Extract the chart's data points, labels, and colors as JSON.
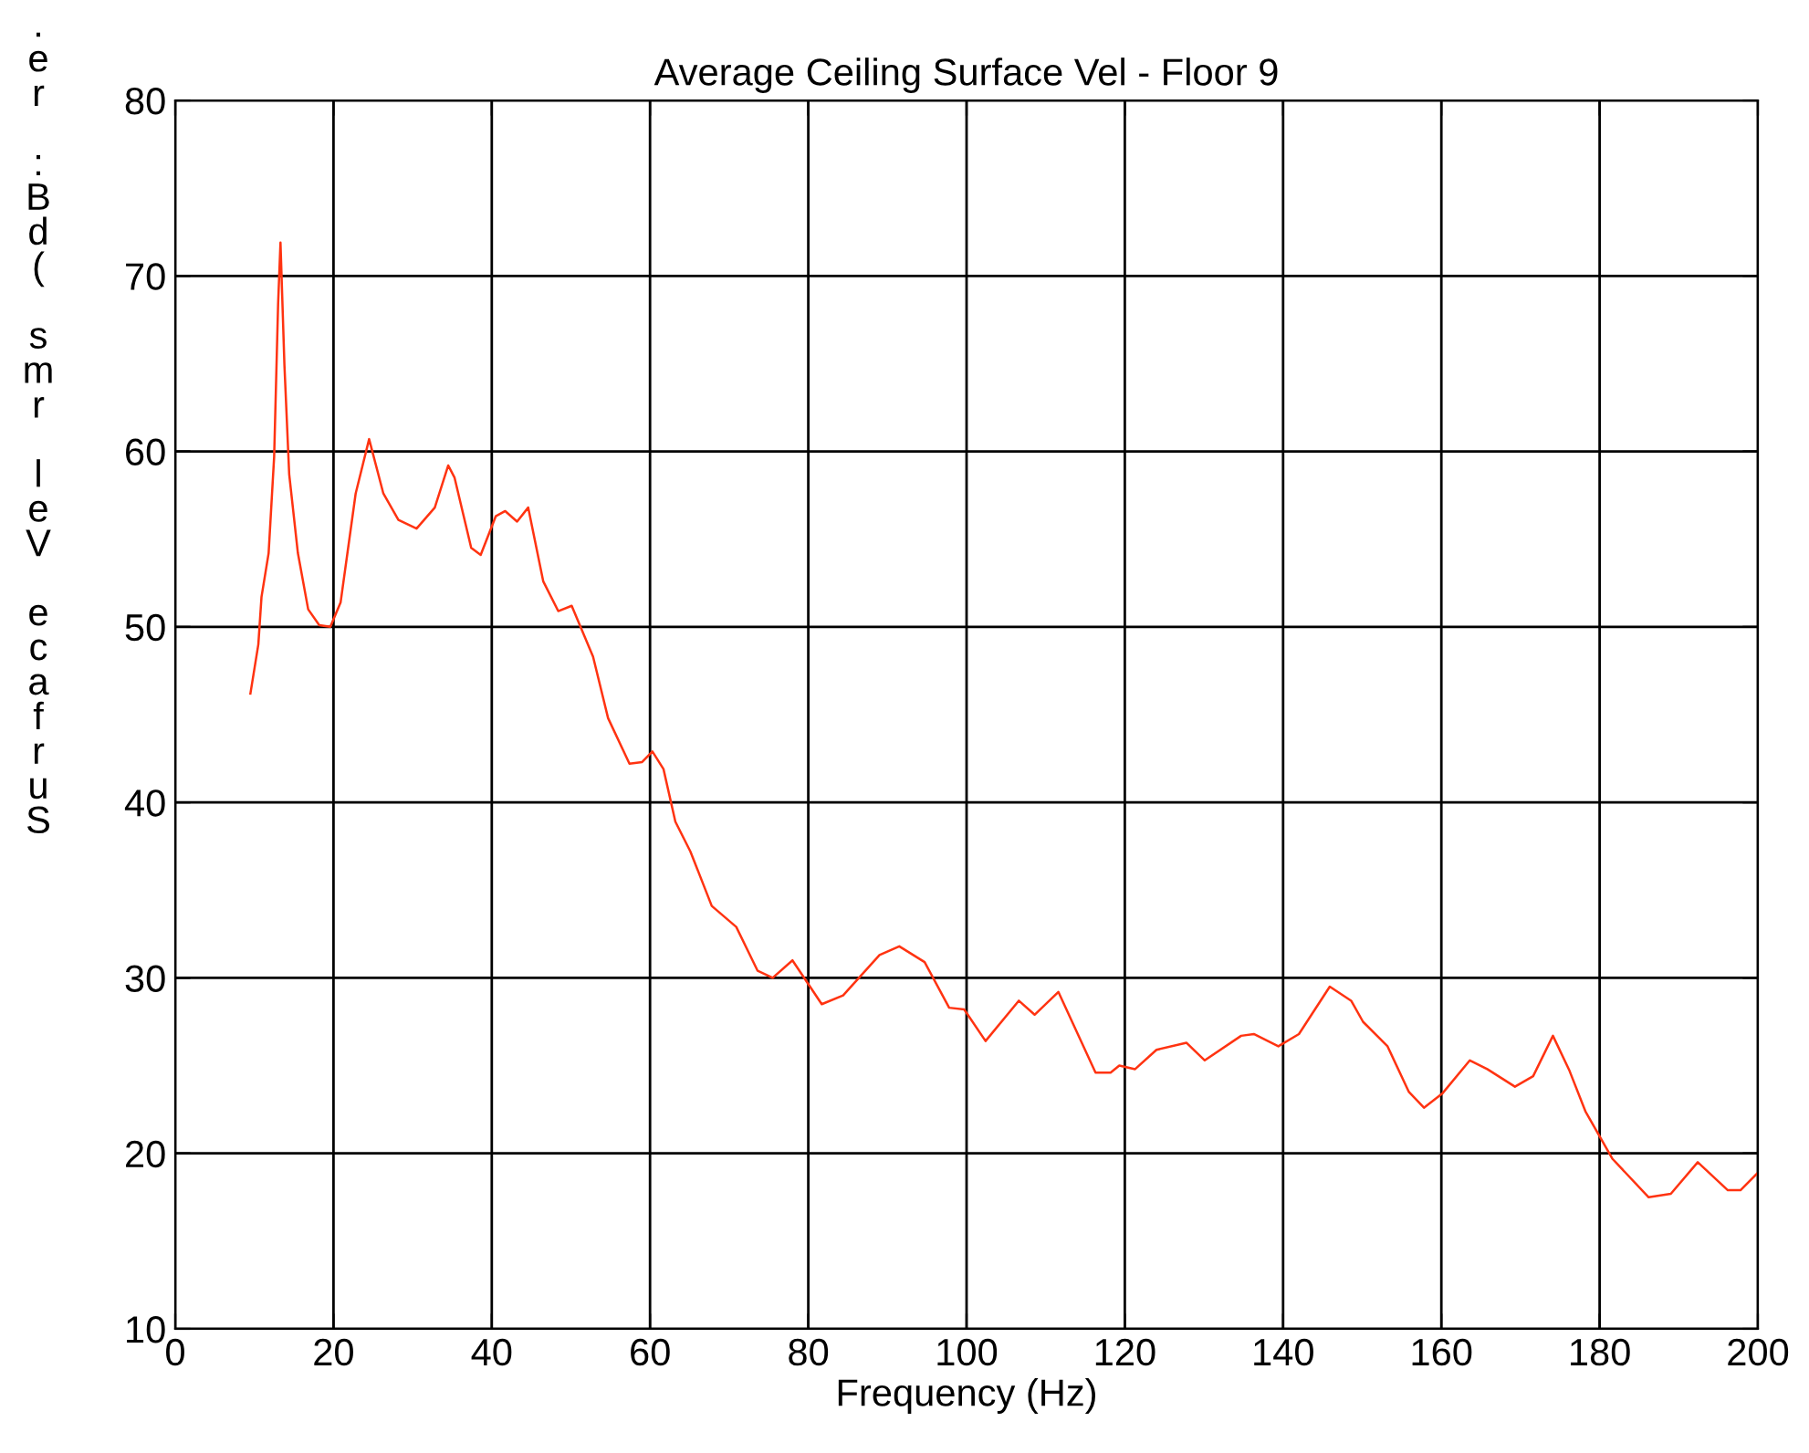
{
  "chart_data": {
    "type": "line",
    "title": "Average Ceiling Surface Vel - Floor 9",
    "xlabel": "Frequency (Hz)",
    "ylabel": ".\ne\nr\n\n:\nB\nd\n(\n\ns\nm\nr\n\nl\ne\nV\n\ne\nc\na\nf\nr\nu\nS",
    "xlim": [
      0,
      200
    ],
    "ylim": [
      10,
      80
    ],
    "xticks": [
      0,
      20,
      40,
      60,
      80,
      100,
      120,
      140,
      160,
      180,
      200
    ],
    "yticks": [
      10,
      20,
      30,
      40,
      50,
      60,
      70,
      80
    ],
    "grid": true,
    "series": [
      {
        "color": "#ff3311",
        "x": [
          9.5,
          10.5,
          10.9,
          11.8,
          12.5,
          13.0,
          13.3,
          13.8,
          14.4,
          15.5,
          16.8,
          18.2,
          19.6,
          20.9,
          22.8,
          24.5,
          26.3,
          28.2,
          30.5,
          32.8,
          34.5,
          35.3,
          37.4,
          38.6,
          40.5,
          41.7,
          43.2,
          44.6,
          46.5,
          48.4,
          50.1,
          52.8,
          54.7,
          57.4,
          59.0,
          60.3,
          61.7,
          63.2,
          65.1,
          67.8,
          70.9,
          73.6,
          75.5,
          78.0,
          81.7,
          84.4,
          89.0,
          91.5,
          94.7,
          97.8,
          99.7,
          102.4,
          106.6,
          108.6,
          111.6,
          116.3,
          118.2,
          119.3,
          121.3,
          124.0,
          127.8,
          130.1,
          134.7,
          136.3,
          139.4,
          142.0,
          145.9,
          148.6,
          150.1,
          153.2,
          155.9,
          157.8,
          160.1,
          163.6,
          165.8,
          169.3,
          171.6,
          174.1,
          176.2,
          178.2,
          181.6,
          186.2,
          189.0,
          192.4,
          196.2,
          197.8,
          200.0
        ],
        "values": [
          46.2,
          49.0,
          51.7,
          54.2,
          59.7,
          68.4,
          71.9,
          64.9,
          58.7,
          54.2,
          51.0,
          50.1,
          50.0,
          51.4,
          57.6,
          60.7,
          57.6,
          56.1,
          55.6,
          56.8,
          59.2,
          58.5,
          54.5,
          54.1,
          56.3,
          56.6,
          56.0,
          56.8,
          52.6,
          50.9,
          51.2,
          48.3,
          44.8,
          42.2,
          42.3,
          42.9,
          41.9,
          38.9,
          37.2,
          34.1,
          32.9,
          30.4,
          30.0,
          31.0,
          28.5,
          29.0,
          31.3,
          31.8,
          30.9,
          28.3,
          28.2,
          26.4,
          28.7,
          27.9,
          29.2,
          24.6,
          24.6,
          25.0,
          24.8,
          25.9,
          26.3,
          25.3,
          26.7,
          26.8,
          26.1,
          26.8,
          29.5,
          28.7,
          27.5,
          26.1,
          23.5,
          22.6,
          23.4,
          25.3,
          24.8,
          23.8,
          24.4,
          26.7,
          24.7,
          22.4,
          19.7,
          17.5,
          17.7,
          19.5,
          17.9,
          17.9,
          18.9
        ]
      }
    ]
  }
}
